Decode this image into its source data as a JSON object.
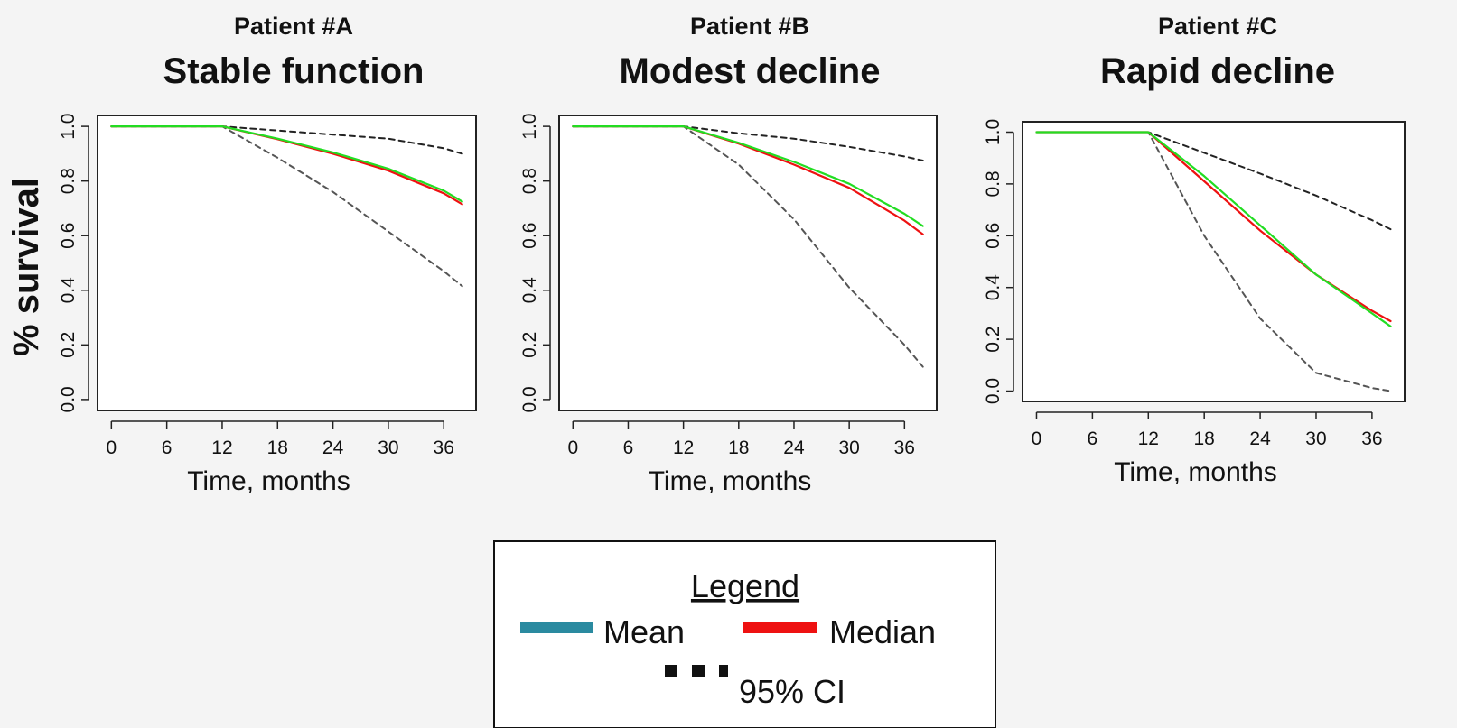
{
  "ylabel": "% survival",
  "legend": {
    "title": "Legend",
    "mean_label": "Mean",
    "median_label": "Median",
    "ci_label": "95% CI",
    "mean_swatch_color": "#2a8aa0",
    "median_swatch_color": "#ee1111",
    "ci_swatch_color": "#111111"
  },
  "chart_data": [
    {
      "type": "line",
      "subtitle": "Patient #A",
      "title": "Stable function",
      "xlabel": "Time, months",
      "ylabel": "% survival",
      "xticks": [
        0,
        6,
        12,
        18,
        24,
        30,
        36
      ],
      "yticks": [
        "0.0",
        "0.2",
        "0.4",
        "0.6",
        "0.8",
        "1.0"
      ],
      "xlim": [
        -1.5,
        39.5
      ],
      "ylim": [
        -0.04,
        1.04
      ],
      "grid": false,
      "x": [
        0,
        6,
        12,
        18,
        24,
        30,
        36,
        38
      ],
      "series": [
        {
          "key": "mean",
          "color": "#22dd22",
          "style": "solid",
          "values": [
            1.0,
            1.0,
            1.0,
            0.955,
            0.905,
            0.845,
            0.765,
            0.725
          ]
        },
        {
          "key": "median",
          "color": "#ee1111",
          "style": "solid",
          "values": [
            1.0,
            1.0,
            1.0,
            0.953,
            0.9,
            0.838,
            0.755,
            0.715
          ]
        },
        {
          "key": "ci_upper",
          "color": "#222222",
          "style": "dashed",
          "values": [
            1.0,
            1.0,
            1.0,
            0.985,
            0.97,
            0.955,
            0.92,
            0.9
          ]
        },
        {
          "key": "ci_lower",
          "color": "#555555",
          "style": "dashed",
          "values": [
            1.0,
            1.0,
            1.0,
            0.885,
            0.76,
            0.615,
            0.47,
            0.415
          ]
        }
      ]
    },
    {
      "type": "line",
      "subtitle": "Patient #B",
      "title": "Modest decline",
      "xlabel": "Time, months",
      "ylabel": "",
      "xticks": [
        0,
        6,
        12,
        18,
        24,
        30,
        36
      ],
      "yticks": [
        "0.0",
        "0.2",
        "0.4",
        "0.6",
        "0.8",
        "1.0"
      ],
      "xlim": [
        -1.5,
        39.5
      ],
      "ylim": [
        -0.04,
        1.04
      ],
      "grid": false,
      "x": [
        0,
        6,
        12,
        18,
        24,
        30,
        36,
        38
      ],
      "series": [
        {
          "key": "mean",
          "color": "#22dd22",
          "style": "solid",
          "values": [
            1.0,
            1.0,
            1.0,
            0.94,
            0.87,
            0.79,
            0.68,
            0.635
          ]
        },
        {
          "key": "median",
          "color": "#ee1111",
          "style": "solid",
          "values": [
            1.0,
            1.0,
            1.0,
            0.937,
            0.86,
            0.775,
            0.655,
            0.605
          ]
        },
        {
          "key": "ci_upper",
          "color": "#222222",
          "style": "dashed",
          "values": [
            1.0,
            1.0,
            1.0,
            0.975,
            0.955,
            0.925,
            0.89,
            0.875
          ]
        },
        {
          "key": "ci_lower",
          "color": "#555555",
          "style": "dashed",
          "values": [
            1.0,
            1.0,
            1.0,
            0.86,
            0.66,
            0.41,
            0.2,
            0.12
          ]
        }
      ]
    },
    {
      "type": "line",
      "subtitle": "Patient #C",
      "title": "Rapid decline",
      "xlabel": "Time, months",
      "ylabel": "",
      "xticks": [
        0,
        6,
        12,
        18,
        24,
        30,
        36
      ],
      "yticks": [
        "0.0",
        "0.2",
        "0.4",
        "0.6",
        "0.8",
        "1.0"
      ],
      "xlim": [
        -1.5,
        39.5
      ],
      "ylim": [
        -0.04,
        1.04
      ],
      "grid": false,
      "x": [
        0,
        6,
        12,
        18,
        24,
        30,
        36,
        38
      ],
      "series": [
        {
          "key": "mean",
          "color": "#22dd22",
          "style": "solid",
          "values": [
            1.0,
            1.0,
            1.0,
            0.83,
            0.64,
            0.45,
            0.3,
            0.25
          ]
        },
        {
          "key": "median",
          "color": "#ee1111",
          "style": "solid",
          "values": [
            1.0,
            1.0,
            1.0,
            0.81,
            0.62,
            0.45,
            0.31,
            0.27
          ]
        },
        {
          "key": "ci_upper",
          "color": "#222222",
          "style": "dashed",
          "values": [
            1.0,
            1.0,
            1.0,
            0.92,
            0.84,
            0.755,
            0.66,
            0.625
          ]
        },
        {
          "key": "ci_lower",
          "color": "#555555",
          "style": "dashed",
          "values": [
            1.0,
            1.0,
            1.0,
            0.6,
            0.28,
            0.07,
            0.012,
            0.0
          ]
        }
      ]
    }
  ]
}
